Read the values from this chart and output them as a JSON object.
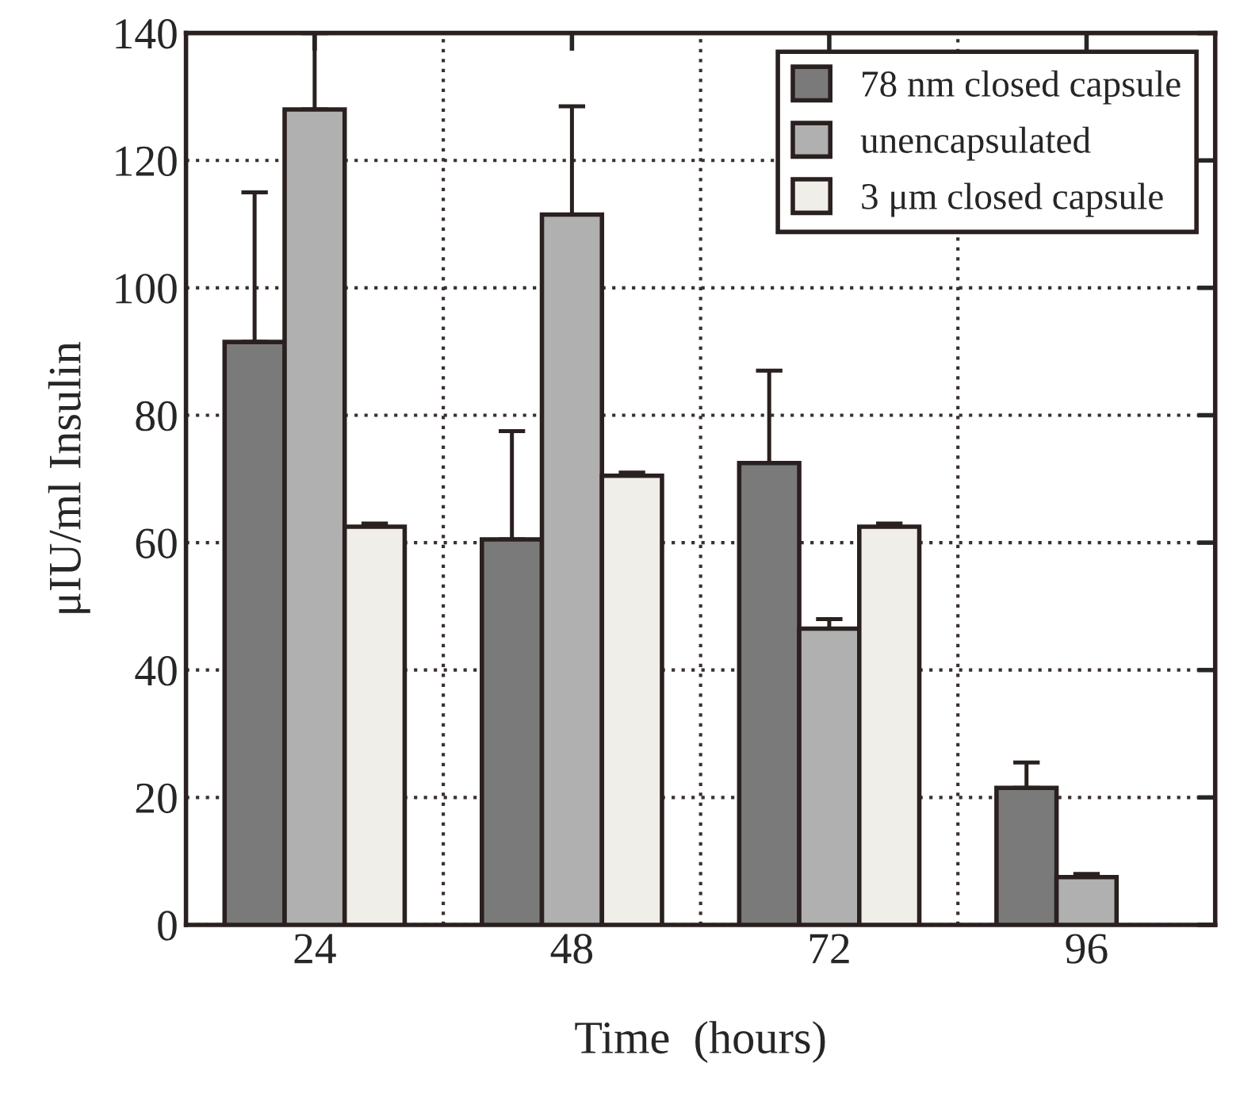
{
  "chart_data": {
    "type": "bar",
    "xlabel": "Time  (hours)",
    "ylabel": "μIU/ml Insulin",
    "categories": [
      "24",
      "48",
      "72",
      "96"
    ],
    "series": [
      {
        "name": "78 nm closed capsule",
        "color": "#7a7a7a",
        "values": [
          91.5,
          60.5,
          72.5,
          21.5
        ],
        "errors": [
          [
            91.5,
            115
          ],
          [
            60.5,
            77.5
          ],
          [
            72.5,
            87
          ],
          [
            21.5,
            25.5
          ]
        ]
      },
      {
        "name": "unencapsulated",
        "color": "#b0b0b0",
        "values": [
          128,
          111.5,
          46.5,
          7.5
        ],
        "errors": [
          [
            128,
            140
          ],
          [
            111.5,
            128.5
          ],
          [
            46.5,
            48
          ],
          [
            7.5,
            8
          ]
        ]
      },
      {
        "name": "3 μm closed capsule",
        "color": "#f0eee8",
        "values": [
          62.5,
          70.5,
          62.5,
          null
        ],
        "errors": [
          [
            62.5,
            63
          ],
          [
            70.5,
            71
          ],
          [
            62.5,
            63
          ],
          null
        ]
      }
    ],
    "ylim": [
      0,
      140
    ],
    "yticks": [
      0,
      20,
      40,
      60,
      80,
      100,
      120,
      140
    ],
    "grid": true,
    "legend": "top right"
  }
}
